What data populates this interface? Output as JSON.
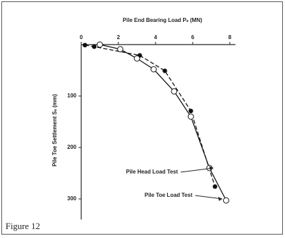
{
  "chart_data": {
    "type": "line",
    "title": "Pile End Bearing Load Pₛ (MN)",
    "y_label": "Pile Toe Settlement Sₛ (mm)",
    "caption": "Figure 12",
    "xlim": [
      0,
      8.3
    ],
    "xticks": [
      0,
      2,
      4,
      6,
      8
    ],
    "ylim": [
      0,
      340
    ],
    "yticks": [
      100,
      200,
      300
    ],
    "series": [
      {
        "name": "Pile Head Load Test",
        "color": "#111111",
        "dashed": true,
        "marker": "filled",
        "x": [
          0.2,
          0.7,
          3.15,
          4.5,
          5.9,
          7.2
        ],
        "values": [
          1,
          4,
          21,
          51,
          129,
          276
        ]
      },
      {
        "name": "Pile Toe Load Test",
        "color": "#111111",
        "dashed": false,
        "marker": "open",
        "x": [
          1.0,
          2.1,
          3.0,
          3.9,
          5.0,
          5.9,
          6.9,
          7.8
        ],
        "values": [
          0,
          9,
          27,
          48,
          91,
          140,
          240,
          303
        ]
      }
    ]
  }
}
